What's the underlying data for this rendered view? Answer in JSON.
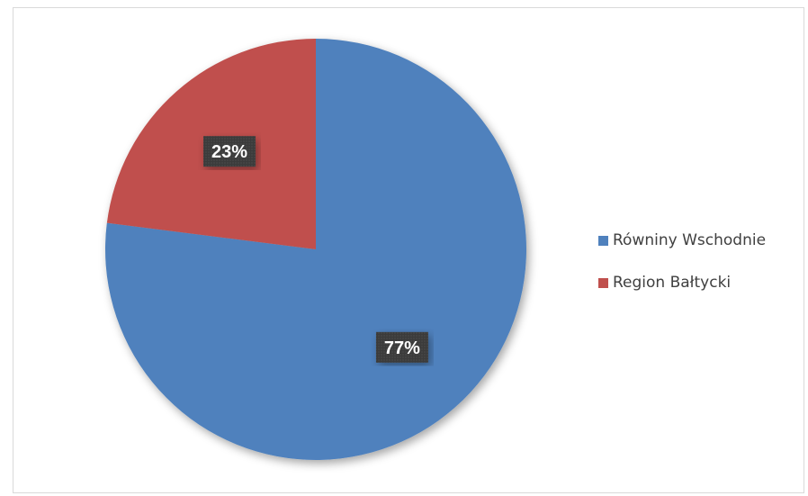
{
  "chart_data": {
    "type": "pie",
    "title": "",
    "slices": [
      {
        "label": "Równiny Wschodnie",
        "value": 77,
        "display": "77%",
        "color": "#4f81bd"
      },
      {
        "label": "Region Bałtycki",
        "value": 23,
        "display": "23%",
        "color": "#c0504d"
      }
    ],
    "start_angle": "12 o'clock, clockwise",
    "legend_position": "right",
    "data_label_style": "white bold text on dark box"
  }
}
